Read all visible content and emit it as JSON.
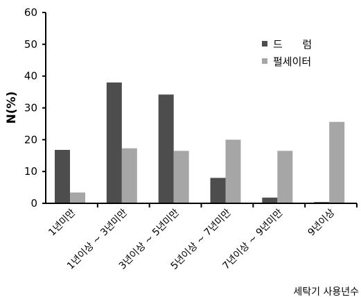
{
  "chart_data": {
    "type": "bar",
    "categories": [
      "1년미만",
      "1년이상 ~ 3년미만",
      "3년이상 ~ 5년미만",
      "5년이상 ~ 7년미만",
      "7년이상 ~ 9년미만",
      "9년이상"
    ],
    "series": [
      {
        "name": "드      럼",
        "values": [
          16.8,
          38.0,
          34.2,
          8.0,
          1.8,
          0.4
        ],
        "color": "#4d4d4d"
      },
      {
        "name": "펄세이터",
        "values": [
          3.4,
          17.3,
          16.5,
          20.0,
          16.5,
          25.6
        ],
        "color": "#a6a6a6"
      }
    ],
    "ylabel": "N(%)",
    "xlabel": "세탁기 사용년수",
    "ylim": [
      0,
      60
    ],
    "yticks": [
      0,
      10,
      20,
      30,
      40,
      50,
      60
    ],
    "grid": false,
    "legend_position": "top-right"
  }
}
